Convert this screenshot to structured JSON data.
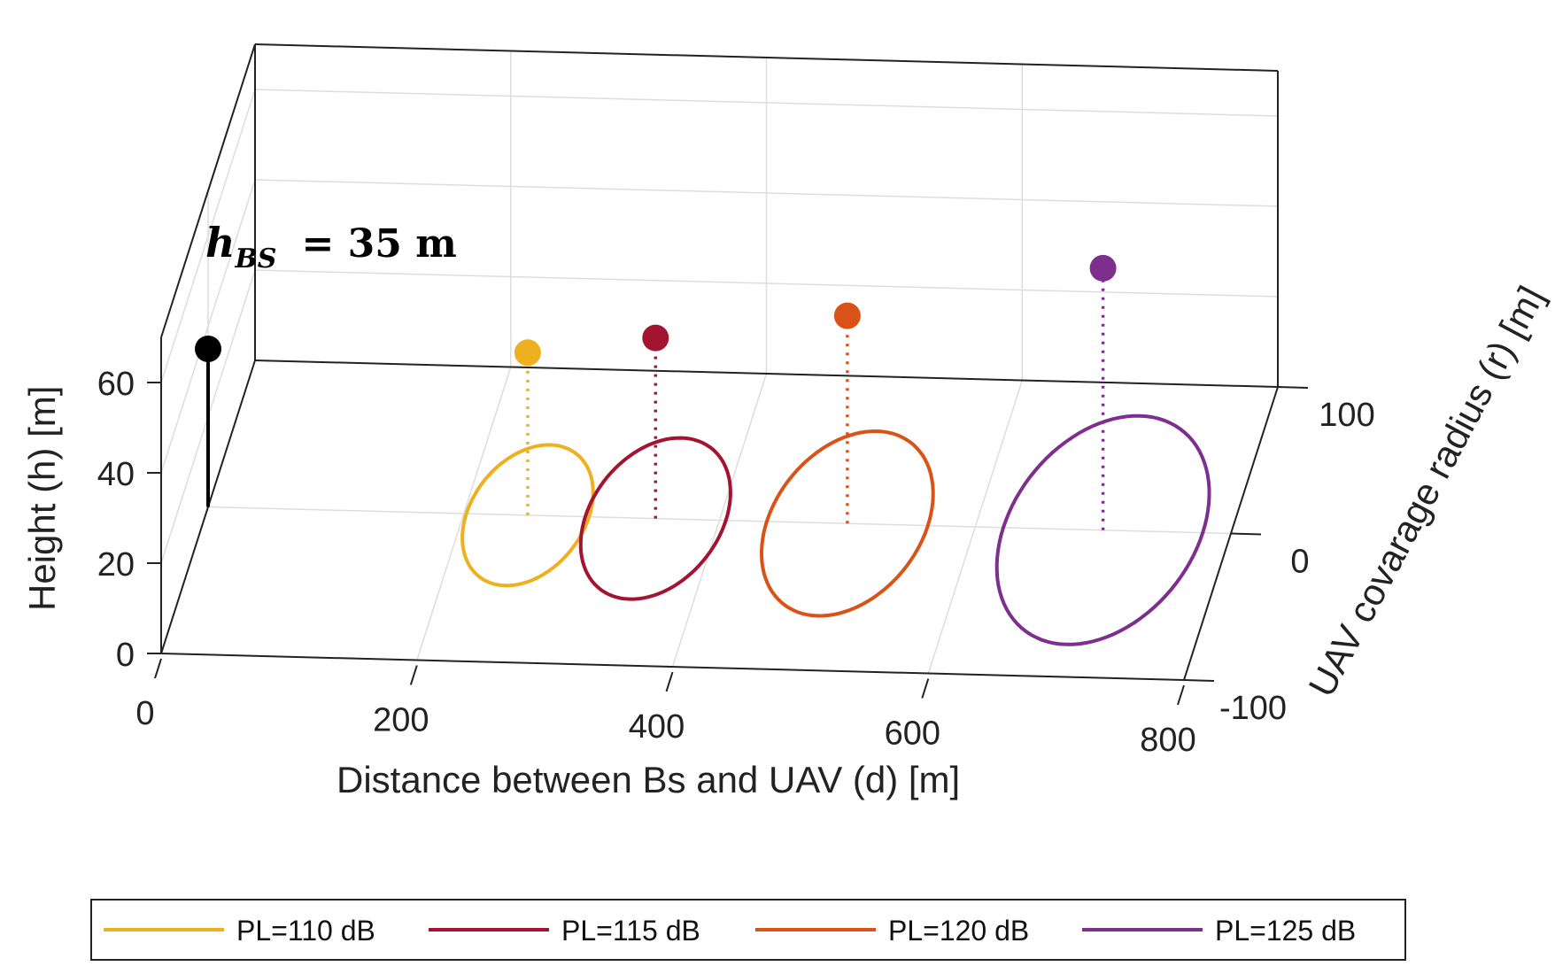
{
  "chart_data": {
    "type": "3d-line",
    "title": "",
    "xlabel": "Distance between Bs and UAV  (d) [m]",
    "ylabel": "UAV covarage radius (r) [m]",
    "zlabel": "Height (h) [m]",
    "xlim": [
      0,
      800
    ],
    "ylim": [
      -100,
      100
    ],
    "zlim": [
      0,
      70
    ],
    "x_ticks": [
      "0",
      "200",
      "400",
      "600",
      "800"
    ],
    "y_ticks": [
      "-100",
      "0",
      "100"
    ],
    "z_ticks": [
      "0",
      "20",
      "40",
      "60"
    ],
    "grid": true,
    "legend_position": "bottom",
    "annotation": {
      "symbol": "h",
      "subscript": "BS",
      "text": "= 35 m"
    },
    "base_station": {
      "x": 0,
      "y": 0,
      "height": 35,
      "color": "#000000"
    },
    "series": [
      {
        "name": "PL=110 dB",
        "color": "#EDB120",
        "distance": 250,
        "radius": 48,
        "height": 36
      },
      {
        "name": "PL=115 dB",
        "color": "#A2142F",
        "distance": 350,
        "radius": 55,
        "height": 40
      },
      {
        "name": "PL=120 dB",
        "color": "#D95319",
        "distance": 500,
        "radius": 63,
        "height": 46
      },
      {
        "name": "PL=125 dB",
        "color": "#7E2F8E",
        "distance": 700,
        "radius": 78,
        "height": 58
      }
    ]
  }
}
